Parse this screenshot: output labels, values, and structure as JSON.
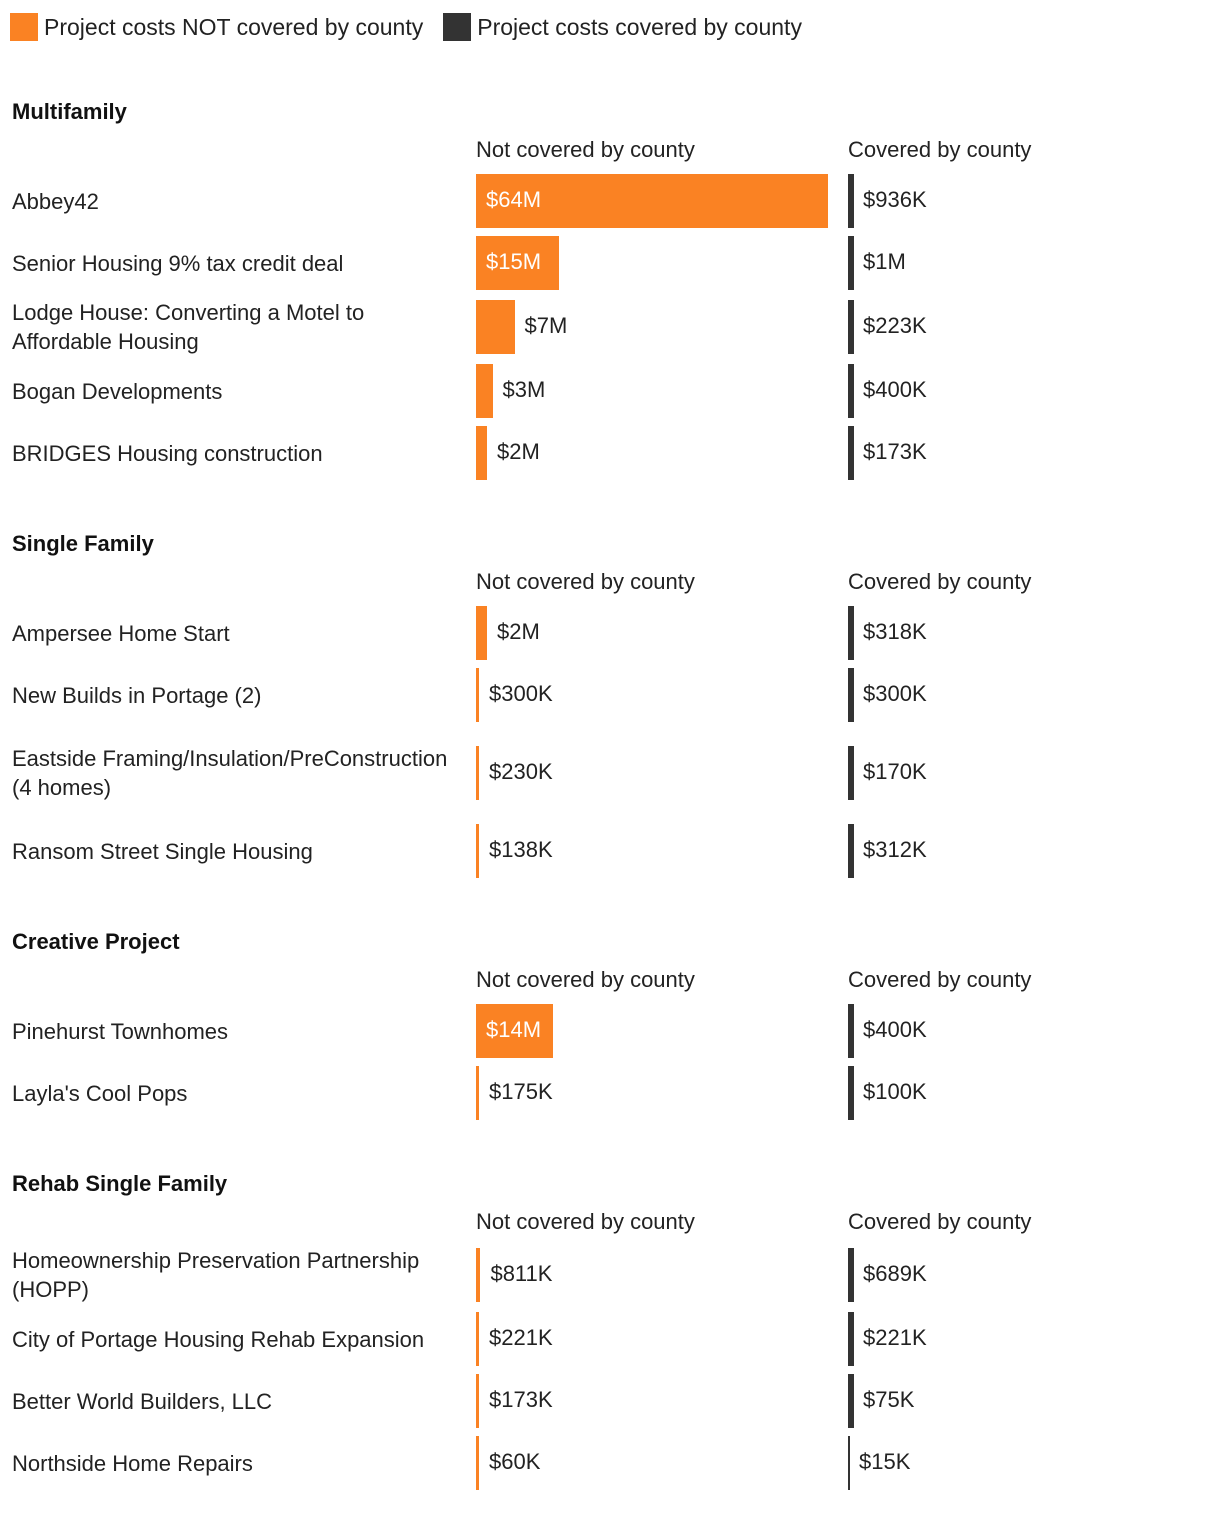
{
  "legend": {
    "not_covered": {
      "label": "Project costs NOT covered by county",
      "color": "#fa8223"
    },
    "covered": {
      "label": "Project costs covered by county",
      "color": "#333333"
    }
  },
  "chart_data": {
    "type": "bar",
    "orientation": "horizontal",
    "column_headers": {
      "not_covered": "Not covered by county",
      "covered": "Covered by county"
    },
    "series": [
      {
        "key": "not_covered",
        "name": "Project costs NOT covered by county",
        "color": "#fa8223"
      },
      {
        "key": "covered",
        "name": "Project costs covered by county",
        "color": "#333333"
      }
    ],
    "groups": [
      {
        "title": "Multifamily",
        "rows": [
          {
            "label": "Abbey42",
            "not_covered": 64000000,
            "not_covered_label": "$64M",
            "covered": 936000,
            "covered_label": "$936K"
          },
          {
            "label": "Senior Housing 9% tax credit deal",
            "not_covered": 15000000,
            "not_covered_label": "$15M",
            "covered": 1000000,
            "covered_label": "$1M"
          },
          {
            "label": "Lodge House: Converting a Motel to Affordable Housing",
            "not_covered": 7000000,
            "not_covered_label": "$7M",
            "covered": 223000,
            "covered_label": "$223K"
          },
          {
            "label": "Bogan Developments",
            "not_covered": 3000000,
            "not_covered_label": "$3M",
            "covered": 400000,
            "covered_label": "$400K"
          },
          {
            "label": "BRIDGES Housing construction",
            "not_covered": 2000000,
            "not_covered_label": "$2M",
            "covered": 173000,
            "covered_label": "$173K"
          }
        ]
      },
      {
        "title": "Single Family",
        "rows": [
          {
            "label": "Ampersee Home Start",
            "not_covered": 2000000,
            "not_covered_label": "$2M",
            "covered": 318000,
            "covered_label": "$318K"
          },
          {
            "label": "New Builds in Portage (2)",
            "not_covered": 300000,
            "not_covered_label": "$300K",
            "covered": 300000,
            "covered_label": "$300K"
          },
          {
            "label": "Eastside Framing/Insulation/PreConstruction (4 homes)",
            "not_covered": 230000,
            "not_covered_label": "$230K",
            "covered": 170000,
            "covered_label": "$170K"
          },
          {
            "label": "Ransom Street Single Housing",
            "not_covered": 138000,
            "not_covered_label": "$138K",
            "covered": 312000,
            "covered_label": "$312K"
          }
        ]
      },
      {
        "title": "Creative Project",
        "rows": [
          {
            "label": "Pinehurst Townhomes",
            "not_covered": 14000000,
            "not_covered_label": "$14M",
            "covered": 400000,
            "covered_label": "$400K"
          },
          {
            "label": "Layla's Cool Pops",
            "not_covered": 175000,
            "not_covered_label": "$175K",
            "covered": 100000,
            "covered_label": "$100K"
          }
        ]
      },
      {
        "title": "Rehab Single Family",
        "rows": [
          {
            "label": "Homeownership Preservation Partnership (HOPP)",
            "not_covered": 811000,
            "not_covered_label": "$811K",
            "covered": 689000,
            "covered_label": "$689K"
          },
          {
            "label": "City of Portage Housing Rehab Expansion",
            "not_covered": 221000,
            "not_covered_label": "$221K",
            "covered": 221000,
            "covered_label": "$221K"
          },
          {
            "label": "Better World Builders, LLC",
            "not_covered": 173000,
            "not_covered_label": "$173K",
            "covered": 75000,
            "covered_label": "$75K"
          },
          {
            "label": "Northside Home Repairs",
            "not_covered": 60000,
            "not_covered_label": "$60K",
            "covered": 15000,
            "covered_label": "$15K"
          }
        ]
      }
    ]
  }
}
